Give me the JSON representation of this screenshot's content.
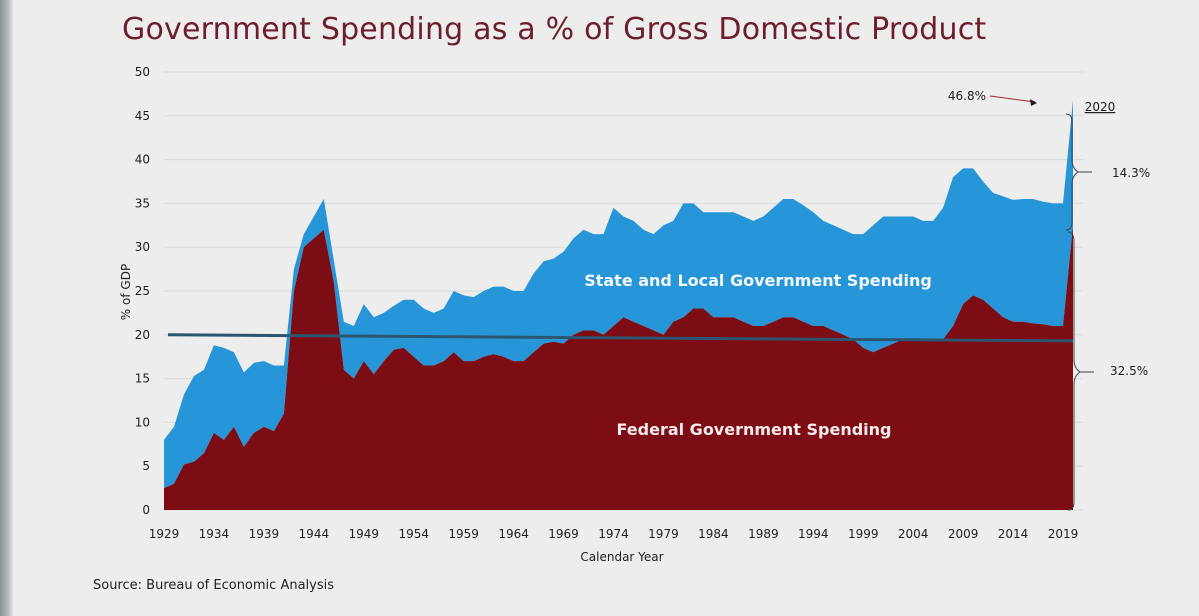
{
  "title": "Government Spending as a % of Gross Domestic Product",
  "source": "Source: Bureau of Economic Analysis",
  "colors": {
    "federal": "#7c0d14",
    "state_local": "#2796d8",
    "reference_line": "#2c5670",
    "title": "#6d1e2c",
    "text": "#1f1f1f"
  },
  "chart_data": {
    "type": "area",
    "title": "Government Spending as a % of Gross Domestic Product",
    "xlabel": "Calendar Year",
    "ylabel": "% of GDP",
    "xlim": [
      1929,
      2020
    ],
    "ylim": [
      0,
      50
    ],
    "y_ticks": [
      "0",
      "5",
      "10",
      "15",
      "20",
      "25",
      "30",
      "35",
      "40",
      "45",
      "50"
    ],
    "x_ticks": [
      "1929",
      "1934",
      "1939",
      "1944",
      "1949",
      "1954",
      "1959",
      "1964",
      "1969",
      "1974",
      "1979",
      "1984",
      "1989",
      "1994",
      "1999",
      "2004",
      "2009",
      "2014",
      "2019"
    ],
    "x": [
      1929,
      1930,
      1931,
      1932,
      1933,
      1934,
      1935,
      1936,
      1937,
      1938,
      1939,
      1940,
      1941,
      1942,
      1943,
      1944,
      1945,
      1946,
      1947,
      1948,
      1949,
      1950,
      1951,
      1952,
      1953,
      1954,
      1955,
      1956,
      1957,
      1958,
      1959,
      1960,
      1961,
      1962,
      1963,
      1964,
      1965,
      1966,
      1967,
      1968,
      1969,
      1970,
      1971,
      1972,
      1973,
      1974,
      1975,
      1976,
      1977,
      1978,
      1979,
      1980,
      1981,
      1982,
      1983,
      1984,
      1985,
      1986,
      1987,
      1988,
      1989,
      1990,
      1991,
      1992,
      1993,
      1994,
      1995,
      1996,
      1997,
      1998,
      1999,
      2000,
      2001,
      2002,
      2003,
      2004,
      2005,
      2006,
      2007,
      2008,
      2009,
      2010,
      2011,
      2012,
      2013,
      2014,
      2015,
      2016,
      2017,
      2018,
      2019,
      2020
    ],
    "series": [
      {
        "name": "Federal Government Spending",
        "values": [
          2.5,
          3.0,
          5.2,
          5.5,
          6.5,
          8.8,
          8.0,
          9.5,
          7.2,
          8.8,
          9.5,
          9.0,
          11.0,
          25.0,
          30.0,
          31.0,
          32.0,
          26.0,
          16.0,
          15.0,
          17.0,
          15.5,
          17.0,
          18.3,
          18.5,
          17.5,
          16.5,
          16.5,
          17.0,
          18.0,
          17.0,
          17.0,
          17.5,
          17.8,
          17.5,
          17.0,
          17.0,
          18.0,
          19.0,
          19.2,
          19.0,
          20.0,
          20.5,
          20.5,
          20.0,
          21.0,
          22.0,
          21.5,
          21.0,
          20.5,
          20.0,
          21.5,
          22.0,
          23.0,
          23.0,
          22.0,
          22.0,
          22.0,
          21.5,
          21.0,
          21.0,
          21.5,
          22.0,
          22.0,
          21.5,
          21.0,
          21.0,
          20.5,
          20.0,
          19.5,
          18.5,
          18.0,
          18.5,
          19.0,
          19.5,
          19.5,
          19.5,
          19.5,
          19.5,
          21.0,
          23.5,
          24.5,
          24.0,
          23.0,
          22.0,
          21.5,
          21.5,
          21.3,
          21.2,
          21.0,
          21.0,
          32.5
        ]
      },
      {
        "name": "State and Local Government Spending",
        "values": [
          5.5,
          6.5,
          8.0,
          9.8,
          9.5,
          10.0,
          10.5,
          8.5,
          8.5,
          8.0,
          7.5,
          7.5,
          5.5,
          2.5,
          1.5,
          2.5,
          3.5,
          2.5,
          5.5,
          6.0,
          6.5,
          6.5,
          5.5,
          5.0,
          5.5,
          6.5,
          6.5,
          6.0,
          6.0,
          7.0,
          7.5,
          7.3,
          7.5,
          7.7,
          8.0,
          8.0,
          8.0,
          9.0,
          9.4,
          9.5,
          10.5,
          11.0,
          11.5,
          11.0,
          11.5,
          13.5,
          11.5,
          11.5,
          11.0,
          11.0,
          12.5,
          11.5,
          13.0,
          12.0,
          11.0,
          12.0,
          12.0,
          12.0,
          12.0,
          12.0,
          12.5,
          13.0,
          13.5,
          13.5,
          13.3,
          13.0,
          12.0,
          12.0,
          12.0,
          12.0,
          13.0,
          14.5,
          15.0,
          14.5,
          14.0,
          14.0,
          13.5,
          13.5,
          15.0,
          17.0,
          15.5,
          14.5,
          13.5,
          13.2,
          13.8,
          13.9,
          14.0,
          14.2,
          14.0,
          14.0,
          14.0,
          14.3
        ]
      }
    ],
    "reference_line": {
      "y_start": 20.0,
      "y_end": 19.3,
      "x_start": 1929,
      "x_end": 2020
    },
    "labels": {
      "state_local": "State and Local Government Spending",
      "federal": "Federal Government Spending"
    },
    "annotations": {
      "peak_label": "46.8%",
      "peak_year": 2020,
      "peak_value": 46.8,
      "year_label": "2020",
      "state_local_share": "14.3%",
      "federal_share": "32.5%"
    }
  }
}
